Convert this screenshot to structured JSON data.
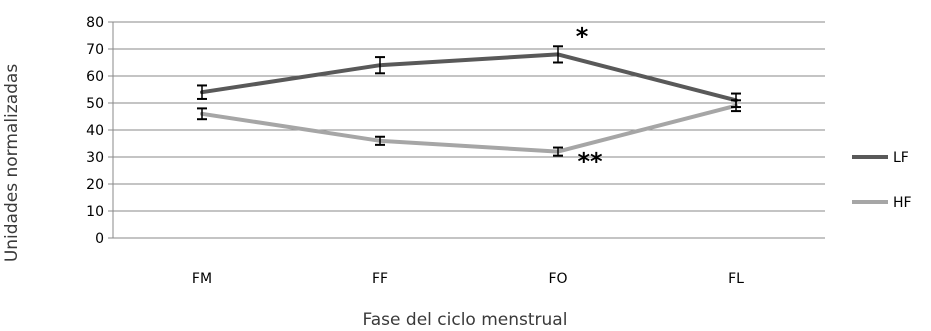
{
  "chart_data": {
    "type": "line",
    "categories": [
      "FM",
      "FF",
      "FO",
      "FL"
    ],
    "ylabel": "Unidades normalizadas",
    "xlabel": "Fase del ciclo menstrual",
    "ylim": [
      0,
      80
    ],
    "yticks": [
      "0",
      "10",
      "20",
      "30",
      "40",
      "50",
      "60",
      "70",
      "80"
    ],
    "grid": true,
    "legend_position": "right",
    "series": [
      {
        "name": "LF",
        "color": "#595959",
        "values": [
          54,
          64,
          68,
          51
        ],
        "errors": [
          2.5,
          3,
          3,
          2.5
        ]
      },
      {
        "name": "HF",
        "color": "#a6a6a6",
        "values": [
          46,
          36,
          32,
          49
        ],
        "errors": [
          2,
          1.5,
          1.5,
          2
        ]
      }
    ],
    "annotations": [
      {
        "text": "*",
        "series": "LF",
        "category": "FO"
      },
      {
        "text": "**",
        "series": "HF",
        "category": "FO"
      }
    ]
  }
}
